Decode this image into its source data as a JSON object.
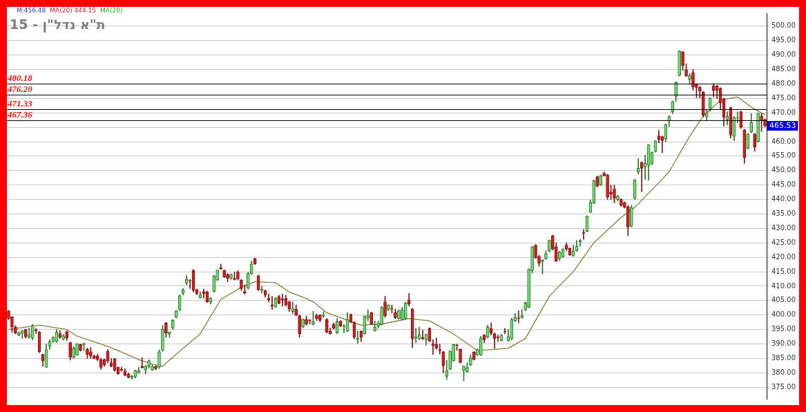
{
  "chart_data": {
    "type": "candlestick",
    "title": "ת\"א נדל\"ן - 15",
    "annotations": [
      "M:456.48",
      "MA(20) 444.15",
      "MA(20)",
      "465.53"
    ],
    "categories": [
      null,
      null,
      null,
      null,
      null,
      null,
      null,
      null,
      null,
      null,
      null,
      null,
      null,
      null,
      null,
      null,
      null,
      null,
      null,
      null,
      null,
      null,
      null,
      null,
      null,
      null,
      null,
      null,
      null,
      null,
      null,
      null,
      null,
      null,
      null,
      null,
      null,
      null,
      null,
      null,
      null,
      null,
      null,
      null,
      null,
      null,
      null,
      null,
      null,
      null,
      null,
      null,
      null,
      null,
      null,
      null,
      null,
      null,
      null,
      null,
      null,
      null,
      null,
      null,
      null,
      null,
      null,
      null,
      null,
      null,
      null,
      null,
      null,
      null,
      null,
      null,
      null,
      null,
      null,
      null,
      null,
      null,
      null,
      null,
      null,
      null,
      null,
      null,
      null,
      null,
      null,
      null,
      null,
      null,
      null,
      null,
      null,
      null,
      null,
      null,
      null,
      null,
      null,
      null,
      null,
      null,
      null,
      null,
      null,
      null,
      null,
      null,
      null,
      null,
      null,
      null,
      null,
      null,
      null,
      null,
      null,
      null,
      null,
      null,
      null,
      null,
      null,
      null,
      null,
      null,
      null,
      null,
      null,
      null,
      null,
      null,
      null,
      null,
      null,
      null,
      null,
      null,
      null,
      null,
      null,
      null,
      null,
      null,
      null,
      null,
      null,
      null,
      null,
      null,
      null,
      null,
      null,
      null,
      null,
      null,
      null,
      null,
      null,
      null,
      null,
      null,
      null,
      null,
      null,
      null,
      null,
      null,
      null,
      null,
      null,
      null,
      null,
      null,
      null,
      null,
      null,
      null,
      null,
      null,
      null,
      null,
      null,
      null,
      null,
      null,
      null,
      null,
      null,
      null,
      null,
      null,
      null,
      null,
      null,
      null,
      null,
      null,
      null,
      null,
      null,
      null,
      null,
      null,
      null,
      null,
      null,
      null,
      null,
      null,
      null,
      null,
      null,
      null,
      null,
      null,
      null,
      null
    ],
    "ohlc": [
      [
        401.5,
        401.6,
        398.5,
        398.7
      ],
      [
        399.4,
        399.5,
        394,
        395.9
      ],
      [
        395.9,
        396.4,
        393.5,
        393.8
      ],
      [
        393.1,
        394.2,
        392.8,
        393.8
      ],
      [
        393.6,
        394.6,
        391.9,
        394.6
      ],
      [
        395,
        395,
        392,
        392.5
      ],
      [
        392.3,
        395.4,
        391.9,
        393.3
      ],
      [
        392,
        396.8,
        391.5,
        396.4
      ],
      [
        394.8,
        395.4,
        393.6,
        394.6
      ],
      [
        394.2,
        394.3,
        387,
        387.3
      ],
      [
        386.4,
        386.5,
        382.3,
        384.2
      ],
      [
        381.9,
        390,
        381.9,
        388
      ],
      [
        389.2,
        391.5,
        388.1,
        390.8
      ],
      [
        390.8,
        392.6,
        390.5,
        392.3
      ],
      [
        390.8,
        395,
        390.5,
        394.1
      ],
      [
        393.6,
        394.6,
        391.9,
        392.3
      ],
      [
        391.7,
        393.3,
        391.3,
        392.9
      ],
      [
        394.2,
        394.6,
        391.2,
        392.1
      ],
      [
        390.5,
        390.6,
        384.4,
        385.4
      ],
      [
        385.4,
        389,
        385,
        388.6
      ],
      [
        386.2,
        390.2,
        386,
        390
      ],
      [
        389.8,
        390,
        387.5,
        387.7
      ],
      [
        389.8,
        390.4,
        387.7,
        390.2
      ],
      [
        388.2,
        388.6,
        385,
        386.4
      ],
      [
        387.3,
        388.8,
        385,
        385.8
      ],
      [
        385.8,
        386.2,
        384.8,
        385
      ],
      [
        385.9,
        386.5,
        384.2,
        384.6
      ],
      [
        384.6,
        385,
        381.2,
        381.9
      ],
      [
        384.6,
        384.8,
        382.3,
        382.7
      ],
      [
        387.5,
        388.1,
        383.5,
        384.2
      ],
      [
        383.5,
        385,
        382,
        382.3
      ],
      [
        384.8,
        385,
        380.5,
        380.8
      ],
      [
        381.9,
        382,
        379.5,
        379.6
      ],
      [
        381.2,
        381.9,
        380.6,
        380.8
      ],
      [
        380.5,
        381.5,
        379,
        379.2
      ],
      [
        379.6,
        380,
        378.2,
        378.5
      ],
      [
        378.1,
        379.2,
        377.9,
        378.8
      ],
      [
        378.6,
        381,
        378.2,
        380.8
      ],
      [
        380,
        381.9,
        379.8,
        380.8
      ],
      [
        382.3,
        385.2,
        381.6,
        381.8
      ],
      [
        381,
        382.6,
        379.6,
        382.3
      ],
      [
        382.3,
        384.5,
        381.6,
        384.2
      ],
      [
        381,
        382.7,
        380.8,
        382.3
      ],
      [
        382.3,
        382.5,
        381,
        381.5
      ],
      [
        382,
        388,
        381.5,
        387.3
      ],
      [
        387.7,
        396.4,
        387.5,
        395.1
      ],
      [
        397.3,
        397.5,
        392.3,
        393.8
      ],
      [
        393.4,
        394.2,
        392.3,
        394.2
      ],
      [
        395.6,
        398.5,
        395,
        398.2
      ],
      [
        399.2,
        401.6,
        399,
        401.5
      ],
      [
        401.8,
        407,
        401.5,
        406.7
      ],
      [
        407.5,
        409.2,
        407,
        408.8
      ],
      [
        411,
        413.8,
        410.5,
        412.3
      ],
      [
        412,
        412.3,
        409.2,
        411.8
      ],
      [
        415.4,
        415.8,
        408,
        408.5
      ],
      [
        408.7,
        409,
        407,
        407.3
      ],
      [
        406,
        408,
        405.8,
        407
      ],
      [
        408.1,
        409,
        405.9,
        407.3
      ],
      [
        408.1,
        408.3,
        404.4,
        404.6
      ],
      [
        404.6,
        406.1,
        403.8,
        405.9
      ],
      [
        408.1,
        413.8,
        407.9,
        413.5
      ],
      [
        412.1,
        415.6,
        411.9,
        415.6
      ],
      [
        416.4,
        417.7,
        415.8,
        416
      ],
      [
        415.4,
        415.6,
        413,
        413.1
      ],
      [
        414.1,
        414.3,
        411.5,
        412.7
      ],
      [
        412.8,
        414.3,
        412.3,
        414.1
      ],
      [
        412.7,
        415,
        412.1,
        412.3
      ],
      [
        414.9,
        415.4,
        412.1,
        412.5
      ],
      [
        412.1,
        412.3,
        408.5,
        409.2
      ],
      [
        408.1,
        410.5,
        407.2,
        407.7
      ],
      [
        409.4,
        414.8,
        409,
        414.4
      ],
      [
        414.4,
        418.7,
        414,
        417.7
      ],
      [
        419.5,
        419.7,
        417.5,
        417.7
      ],
      [
        413.6,
        413.8,
        408.5,
        408.7
      ],
      [
        408.5,
        410,
        407.7,
        409
      ],
      [
        408.5,
        408.6,
        406.2,
        406.9
      ],
      [
        405.8,
        407.3,
        404.6,
        405.3
      ],
      [
        403.6,
        406.5,
        401.9,
        403.1
      ],
      [
        402.8,
        406.1,
        402.6,
        405.9
      ],
      [
        406.4,
        406.8,
        403.8,
        404.1
      ],
      [
        405.6,
        407.2,
        403.1,
        405.3
      ],
      [
        405.8,
        406.9,
        403.1,
        403.5
      ],
      [
        404.6,
        404.8,
        401.2,
        402.1
      ],
      [
        401.2,
        404.6,
        400.4,
        402.3
      ],
      [
        402.1,
        403.5,
        399.7,
        400
      ],
      [
        399.8,
        400,
        392.3,
        393.5
      ],
      [
        395.9,
        398.7,
        395.6,
        398.5
      ],
      [
        398.5,
        399.6,
        396.5,
        396.9
      ],
      [
        398.2,
        398.5,
        396.9,
        398.1
      ],
      [
        396.9,
        401.3,
        396.5,
        397.8
      ],
      [
        399.8,
        400.4,
        398.1,
        398.8
      ],
      [
        400,
        400.2,
        397.7,
        398.2
      ],
      [
        399.6,
        401.2,
        399.2,
        400
      ],
      [
        398.5,
        398.8,
        393.8,
        394.1
      ],
      [
        394.4,
        395.5,
        393.3,
        393.5
      ],
      [
        396.9,
        397.2,
        395.2,
        395.4
      ],
      [
        393.8,
        398.8,
        393.6,
        397.7
      ],
      [
        397.9,
        398.1,
        396,
        396.2
      ],
      [
        395.9,
        396.7,
        393.8,
        396.2
      ],
      [
        394.4,
        400.8,
        394.2,
        398.5
      ],
      [
        400.2,
        400.4,
        397.3,
        397.5
      ],
      [
        397.5,
        397.7,
        391.8,
        392.3
      ],
      [
        391.5,
        394.4,
        390.2,
        392.1
      ],
      [
        394.4,
        394.6,
        390.8,
        392.3
      ],
      [
        393.5,
        399.8,
        393.3,
        399.6
      ],
      [
        399,
        401.9,
        398,
        399.8
      ],
      [
        400.8,
        401,
        396.7,
        396.9
      ],
      [
        394.6,
        398,
        394.4,
        395.8
      ],
      [
        396.2,
        397.9,
        395.4,
        397.3
      ],
      [
        396.7,
        403,
        396.5,
        402.7
      ],
      [
        404.6,
        406.5,
        399.2,
        399.8
      ],
      [
        401.8,
        403.6,
        401.5,
        403.5
      ],
      [
        402.3,
        403.5,
        400.8,
        402.1
      ],
      [
        400.9,
        402.1,
        398.8,
        399
      ],
      [
        398.8,
        401.8,
        398.5,
        401.5
      ],
      [
        398.5,
        402.7,
        398.2,
        401.8
      ],
      [
        398.8,
        404.4,
        398.5,
        404.2
      ],
      [
        405.2,
        407.5,
        403.1,
        403.8
      ],
      [
        402.1,
        402.3,
        388.7,
        391.8
      ],
      [
        392,
        395.4,
        390.4,
        392.5
      ],
      [
        391.8,
        395.8,
        391.5,
        393.3
      ],
      [
        392.3,
        394.8,
        391.5,
        391.8
      ],
      [
        391.5,
        393.5,
        389.6,
        393.3
      ],
      [
        395.4,
        395.6,
        390.8,
        391
      ],
      [
        390.2,
        391.5,
        386.4,
        389.5
      ],
      [
        389.8,
        392.1,
        388.2,
        388.5
      ],
      [
        388.1,
        390,
        386.5,
        387.7
      ],
      [
        387.3,
        387.5,
        380,
        382.5
      ],
      [
        378.8,
        384.4,
        377.7,
        380.8
      ],
      [
        381.3,
        387.7,
        381,
        387.5
      ],
      [
        384.2,
        390,
        384,
        389.8
      ],
      [
        389.6,
        390,
        387.7,
        389.4
      ],
      [
        388.2,
        388.4,
        383.4,
        383.6
      ],
      [
        380.8,
        382.5,
        377.2,
        382.3
      ],
      [
        380.4,
        383.5,
        380.2,
        381.8
      ],
      [
        382.8,
        386.2,
        382.5,
        385.2
      ],
      [
        387.2,
        387.4,
        384.4,
        384.6
      ],
      [
        386.2,
        388.3,
        386,
        388.1
      ],
      [
        386.2,
        392.7,
        386,
        392.1
      ],
      [
        393.1,
        393.3,
        390.4,
        391.5
      ],
      [
        392.3,
        396.5,
        392,
        395.8
      ],
      [
        395.4,
        397.3,
        393.1,
        393.8
      ],
      [
        393.6,
        393.8,
        388.5,
        391.9
      ],
      [
        392.4,
        393.1,
        390.8,
        392.2
      ],
      [
        391.2,
        393.3,
        391,
        393.1
      ],
      [
        394.3,
        395.4,
        393.5,
        394.2
      ],
      [
        391.2,
        395,
        391,
        392.5
      ],
      [
        391.8,
        399,
        391.5,
        398.5
      ],
      [
        398,
        400.5,
        397.7,
        399.2
      ],
      [
        398.9,
        401.5,
        397.3,
        398.8
      ],
      [
        399.2,
        401.9,
        398.8,
        399.8
      ],
      [
        401.9,
        404.6,
        401.5,
        404.2
      ],
      [
        402.7,
        416,
        402.5,
        415.9
      ],
      [
        415.4,
        423.8,
        414.6,
        423.6
      ],
      [
        424.2,
        424.4,
        419.6,
        419.8
      ],
      [
        420.2,
        420.8,
        416.9,
        417.9
      ],
      [
        418.5,
        419.2,
        414.2,
        419
      ],
      [
        419.5,
        422.3,
        419.2,
        421.3
      ],
      [
        422.1,
        426,
        421.9,
        425.8
      ],
      [
        427.5,
        427.7,
        422.5,
        422.8
      ],
      [
        423.6,
        425,
        418.5,
        418.7
      ],
      [
        419.5,
        422.1,
        418.8,
        421.9
      ],
      [
        420.2,
        423,
        420,
        422.7
      ],
      [
        424.2,
        425,
        422.3,
        422.8
      ],
      [
        423.1,
        423.3,
        420.6,
        420.8
      ],
      [
        420.5,
        424.2,
        420.3,
        422.1
      ],
      [
        422.3,
        425.8,
        422.1,
        423.8
      ],
      [
        425.4,
        426.2,
        423.8,
        425.8
      ],
      [
        428.6,
        429.6,
        426.2,
        428.3
      ],
      [
        429,
        434.4,
        428.8,
        434.2
      ],
      [
        435.6,
        439.8,
        435.4,
        439
      ],
      [
        438.7,
        446.7,
        438.5,
        446.5
      ],
      [
        447.9,
        448.1,
        444.4,
        444.6
      ],
      [
        445,
        448.4,
        444.8,
        448.2
      ],
      [
        449,
        449.6,
        448.1,
        448.2
      ],
      [
        448.5,
        448.7,
        440,
        440.8
      ],
      [
        442.5,
        445,
        440,
        441.9
      ],
      [
        443.6,
        445,
        438.8,
        440.4
      ],
      [
        440,
        441.5,
        439.5,
        441.1
      ],
      [
        440,
        440.3,
        437.5,
        438
      ],
      [
        439,
        439.2,
        437,
        437.3
      ],
      [
        437.5,
        438,
        427.5,
        430.5
      ],
      [
        430.8,
        438,
        430.5,
        437.3
      ],
      [
        440.4,
        447,
        440,
        446.7
      ],
      [
        449.5,
        454.2,
        448.8,
        450.8
      ],
      [
        452.9,
        453,
        442.7,
        450.8
      ],
      [
        451.3,
        455.4,
        446.9,
        452.5
      ],
      [
        451.8,
        459,
        446.7,
        458.9
      ],
      [
        452.3,
        456.5,
        452,
        456.3
      ],
      [
        456.6,
        460.4,
        456.4,
        460.2
      ],
      [
        462,
        463.9,
        459.6,
        460.8
      ],
      [
        461.8,
        462,
        456.2,
        460.4
      ],
      [
        461,
        466.2,
        460,
        466
      ],
      [
        467.2,
        469,
        465.2,
        468.7
      ],
      [
        470.3,
        474.1,
        469.7,
        473.9
      ],
      [
        475.7,
        480.8,
        473.9,
        480.6
      ],
      [
        482.9,
        491.6,
        482.7,
        491.4
      ],
      [
        491.1,
        491.3,
        484.7,
        486.3
      ],
      [
        484.9,
        487,
        482.6,
        482.8
      ],
      [
        481.6,
        483.6,
        480.1,
        482.9
      ],
      [
        483.9,
        485.1,
        477.8,
        478.9
      ],
      [
        479.9,
        480.1,
        475.2,
        478.8
      ],
      [
        478.9,
        479.1,
        475.1,
        477.5
      ],
      [
        477.2,
        477.4,
        468.5,
        469.1
      ],
      [
        468.5,
        471.1,
        467.4,
        469.8
      ],
      [
        471.6,
        475.3,
        470.5,
        475.1
      ],
      [
        479.3,
        480.1,
        475.5,
        477.8
      ],
      [
        479.3,
        479.5,
        474.9,
        477.8
      ],
      [
        478.5,
        478.7,
        471.2,
        473.4
      ],
      [
        474.9,
        475.1,
        465.4,
        468.5
      ],
      [
        467.7,
        470.3,
        465.8,
        468.8
      ],
      [
        471.8,
        472,
        461.2,
        462.3
      ],
      [
        461.9,
        468.7,
        460.4,
        468.5
      ],
      [
        468.1,
        470.3,
        466.6,
        468.3
      ],
      [
        470.4,
        470.6,
        464.6,
        465.1
      ],
      [
        464.1,
        464.3,
        452.5,
        454.6
      ],
      [
        457.7,
        462.9,
        457.5,
        462.7
      ],
      [
        463.5,
        469.7,
        463.1,
        466.6
      ],
      [
        462.7,
        462.9,
        456.7,
        458.1
      ],
      [
        460,
        470,
        459.8,
        469.8
      ],
      [
        468.9,
        469.7,
        463.5,
        467.2
      ],
      [
        467.7,
        467.9,
        465.1,
        465.53
      ]
    ],
    "series": [
      {
        "type": "line",
        "color": "#7f7f3c",
        "values": [
          395,
          null,
          null,
          null,
          null,
          null,
          null,
          null,
          null,
          396.5,
          null,
          null,
          null,
          null,
          null,
          null,
          null,
          395,
          null,
          null,
          392.7,
          null,
          null,
          null,
          null,
          null,
          null,
          390,
          null,
          null,
          null,
          null,
          387.7,
          null,
          null,
          null,
          null,
          null,
          384.6,
          null,
          null,
          null,
          383,
          null,
          null,
          382.3,
          null,
          null,
          null,
          386.5,
          null,
          null,
          null,
          null,
          null,
          null,
          393.5,
          null,
          null,
          null,
          null,
          null,
          405.4,
          null,
          null,
          null,
          null,
          null,
          409.6,
          null,
          null,
          null,
          411.5,
          null,
          null,
          null,
          null,
          null,
          411.2,
          null,
          null,
          null,
          408,
          null,
          null,
          null,
          406.2,
          null,
          null,
          404.6,
          null,
          null,
          null,
          400.8,
          null,
          null,
          null,
          null,
          null,
          null,
          null,
          null,
          null,
          396.5,
          null,
          null,
          null,
          null,
          null,
          396.9,
          null,
          null,
          null,
          null,
          null,
          null,
          null,
          398.8,
          null,
          null,
          null,
          null,
          null,
          398,
          null,
          null,
          null,
          null,
          null,
          null,
          393.5,
          null,
          null,
          null,
          null,
          null,
          null,
          387.7,
          null,
          null,
          null,
          null,
          null,
          null,
          null,
          null,
          388.5,
          null,
          null,
          null,
          null,
          391.9,
          null,
          null,
          null,
          null,
          null,
          null,
          406.5,
          null,
          null,
          null,
          null,
          null,
          null,
          415,
          null,
          null,
          null,
          null,
          null,
          425,
          null,
          null,
          null,
          null,
          null,
          null,
          null,
          433.8,
          null,
          null,
          null,
          437.3,
          null,
          null,
          null,
          null,
          null,
          null,
          445.8,
          null,
          null,
          449.6,
          null,
          null,
          null,
          null,
          null,
          461.9,
          null,
          null,
          null,
          468.9,
          null,
          null,
          null,
          null,
          474.3,
          null,
          null,
          null,
          null,
          475.5,
          null,
          null,
          null,
          472,
          null,
          null,
          null,
          469.3
        ]
      }
    ],
    "ylim": [
      371,
      504.5
    ],
    "yticks": [
      {
        "value": 375,
        "label": "375.00"
      },
      {
        "value": 380,
        "label": "380.00"
      },
      {
        "value": 385,
        "label": "385.00"
      },
      {
        "value": 390,
        "label": "390.00"
      },
      {
        "value": 395,
        "label": "395.00"
      },
      {
        "value": 400,
        "label": "400.00"
      },
      {
        "value": 405,
        "label": "405.00"
      },
      {
        "value": 410,
        "label": "410.00"
      },
      {
        "value": 415,
        "label": "415.00"
      },
      {
        "value": 420,
        "label": "420.00"
      },
      {
        "value": 425,
        "label": "425.00"
      },
      {
        "value": 430,
        "label": "430.00"
      },
      {
        "value": 435,
        "label": "435.00"
      },
      {
        "value": 440,
        "label": "440.00"
      },
      {
        "value": 445,
        "label": "445.00"
      },
      {
        "value": 450,
        "label": "450.00"
      },
      {
        "value": 455,
        "label": "455.00"
      },
      {
        "value": 460,
        "label": "460.00"
      },
      {
        "value": 465,
        "label": null
      },
      {
        "value": 470,
        "label": "470.00"
      },
      {
        "value": 475,
        "label": "475.00"
      },
      {
        "value": 480,
        "label": "480.00"
      },
      {
        "value": 485,
        "label": "485.00"
      },
      {
        "value": 490,
        "label": "490.00"
      },
      {
        "value": 495,
        "label": "495.00"
      },
      {
        "value": 500,
        "label": "500.00"
      }
    ],
    "grid": "y",
    "tick_labels": "y",
    "marker": "none",
    "line_style": "solid",
    "ref_lines": [
      {
        "axis": "y",
        "value": 480.18,
        "label": "480.18",
        "color": "#000000"
      },
      {
        "axis": "y",
        "value": 476.2,
        "label": "476.20",
        "color": "#000000"
      },
      {
        "axis": "y",
        "value": 471.33,
        "label": "471.33",
        "color": "#000000"
      },
      {
        "axis": "y",
        "value": 467.36,
        "label": "467.36",
        "color": "#000000"
      }
    ]
  }
}
